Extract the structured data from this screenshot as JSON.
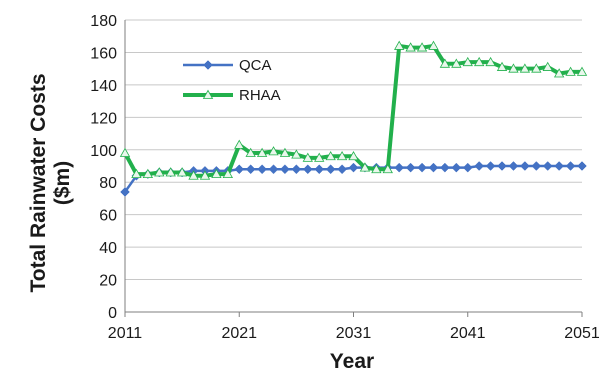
{
  "chart_data": {
    "type": "line",
    "xlabel": "Year",
    "ylabel_line1": "Total Rainwater Costs",
    "ylabel_line2": "($m)",
    "x_ticks": [
      2011,
      2021,
      2031,
      2041,
      2051
    ],
    "y_ticks": [
      0,
      20,
      40,
      60,
      80,
      100,
      120,
      140,
      160,
      180
    ],
    "xlim": [
      2011,
      2051
    ],
    "ylim": [
      0,
      180
    ],
    "grid": "horizontal",
    "legend_placement": "top-left",
    "x": [
      2011,
      2012,
      2013,
      2014,
      2015,
      2016,
      2017,
      2018,
      2019,
      2020,
      2021,
      2022,
      2023,
      2024,
      2025,
      2026,
      2027,
      2028,
      2029,
      2030,
      2031,
      2032,
      2033,
      2034,
      2035,
      2036,
      2037,
      2038,
      2039,
      2040,
      2041,
      2042,
      2043,
      2044,
      2045,
      2046,
      2047,
      2048,
      2049,
      2050,
      2051
    ],
    "series": [
      {
        "name": "QCA",
        "color": "#4472C4",
        "marker": "diamond",
        "values": [
          74,
          84,
          85,
          86,
          86,
          86,
          87,
          87,
          87,
          87,
          88,
          88,
          88,
          88,
          88,
          88,
          88,
          88,
          88,
          88,
          89,
          89,
          89,
          89,
          89,
          89,
          89,
          89,
          89,
          89,
          89,
          90,
          90,
          90,
          90,
          90,
          90,
          90,
          90,
          90,
          90
        ]
      },
      {
        "name": "RHAA",
        "color": "#22B04C",
        "marker": "triangle",
        "values": [
          98,
          85,
          85,
          86,
          86,
          86,
          84,
          84,
          85,
          85,
          103,
          98,
          98,
          99,
          98,
          97,
          95,
          95,
          96,
          96,
          96,
          89,
          88,
          88,
          164,
          163,
          163,
          164,
          153,
          153,
          154,
          154,
          154,
          151,
          150,
          150,
          150,
          151,
          147,
          148,
          148
        ]
      }
    ]
  }
}
